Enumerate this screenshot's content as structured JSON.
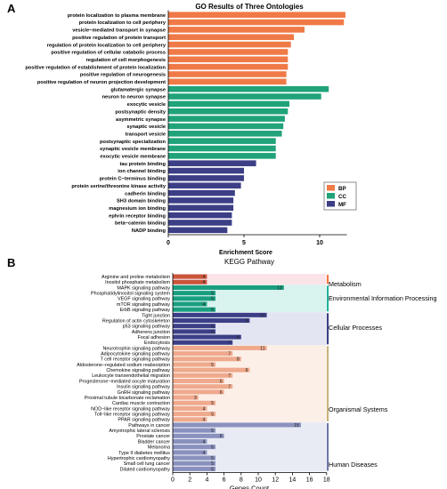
{
  "chart_data": [
    {
      "panel_label": "A",
      "type": "bar",
      "orientation": "horizontal",
      "title": "GO Results of Three Ontologies",
      "xlabel": "Enrichment Score",
      "xlim": [
        0,
        11.8
      ],
      "xticks": [
        0,
        5,
        10
      ],
      "legend": {
        "placement": "right",
        "entries": [
          {
            "name": "BP",
            "color": "#f07a47"
          },
          {
            "name": "CC",
            "color": "#20a37a"
          },
          {
            "name": "MF",
            "color": "#3c3f86"
          }
        ]
      },
      "series": [
        {
          "name": "BP",
          "color": "#f07a47",
          "categories": [
            "protein localization to plasma membrane",
            "protein localization to cell periphery",
            "vesicle−mediated transport in synapse",
            "positive regulation of protein transport",
            "regulation of protein localization to cell periphery",
            "positive regulation of cellular catabolic process",
            "regulation of cell morphogenesis",
            "positive regulation of establishment of protein localization",
            "positive regulation of neurogenesis",
            "positive regulation of neuron projection development"
          ],
          "values": [
            11.7,
            11.6,
            9.0,
            8.3,
            8.1,
            7.9,
            7.9,
            7.9,
            7.8,
            7.8
          ]
        },
        {
          "name": "CC",
          "color": "#20a37a",
          "categories": [
            "glutamatergic synapse",
            "neuron to neuron synapse",
            "exocytic vesicle",
            "postsynaptic density",
            "asymmetric synapse",
            "synaptic vesicle",
            "transport vesicle",
            "postsynaptic specialization",
            "synaptic vesicle membrane",
            "exocytic vesicle membrane"
          ],
          "values": [
            10.6,
            10.1,
            8.0,
            7.9,
            7.7,
            7.6,
            7.5,
            7.1,
            7.1,
            7.1
          ]
        },
        {
          "name": "MF",
          "color": "#3c3f86",
          "categories": [
            "tau protein binding",
            "ion channel binding",
            "protein C−terminus binding",
            "protein serine/threonine kinase activity",
            "cadherin binding",
            "SH3 domain binding",
            "magnesium ion binding",
            "ephrin receptor binding",
            "beta−catenin binding",
            "NADP binding"
          ],
          "values": [
            5.8,
            5.0,
            5.0,
            4.8,
            4.4,
            4.3,
            4.3,
            4.2,
            4.2,
            3.9
          ]
        }
      ]
    },
    {
      "panel_label": "B",
      "type": "bar",
      "orientation": "horizontal",
      "title": "KEGG Pathway",
      "xlabel": "Genes Count",
      "xlim": [
        0,
        18
      ],
      "xticks": [
        0,
        2,
        4,
        6,
        8,
        10,
        12,
        14,
        16,
        18
      ],
      "groups": [
        {
          "name": "Metabolism",
          "color": "#f07a47",
          "bar_color": "#c9553a",
          "bg": "#fbe4e8",
          "pathways": [
            {
              "label": "Arginine and proline metabolism",
              "value": 4
            },
            {
              "label": "Inositol phosphate metabolism",
              "value": 4
            }
          ]
        },
        {
          "name": "Environmental Information Processing",
          "color": "#22b39a",
          "bar_color": "#1a9e80",
          "bg": "#d9f3ef",
          "pathways": [
            {
              "label": "MAPK signaling pathway",
              "value": 13
            },
            {
              "label": "Phosphatidylinositol signaling system",
              "value": 5
            },
            {
              "label": "VEGF signaling pathway",
              "value": 5
            },
            {
              "label": "mTOR signaling pathway",
              "value": 4
            },
            {
              "label": "ErbB signaling pathway",
              "value": 5
            }
          ]
        },
        {
          "name": "Cellular Processes",
          "color": "#3c3f86",
          "bar_color": "#3c3f86",
          "bg": "#e3e5f3",
          "pathways": [
            {
              "label": "Tight junction",
              "value": 11
            },
            {
              "label": "Regulation of actin cytoskeleton",
              "value": 9
            },
            {
              "label": "p53 signaling pathway",
              "value": 5
            },
            {
              "label": "Adherens junction",
              "value": 5
            },
            {
              "label": "Focal adhesion",
              "value": 8
            },
            {
              "label": "Endocytosis",
              "value": 7
            }
          ]
        },
        {
          "name": "Organismal Systems",
          "color": "#c9b27a",
          "bar_color": "#efa98c",
          "bg": "#fcefe8",
          "pathways": [
            {
              "label": "Neurotrophin signaling pathway",
              "value": 11
            },
            {
              "label": "Adipocytokine signaling pathway",
              "value": 7
            },
            {
              "label": "T cell receptor signaling pathway",
              "value": 8
            },
            {
              "label": "Aldosterone−regulated sodium reabsorption",
              "value": 5
            },
            {
              "label": "Chemokine signaling pathway",
              "value": 9
            },
            {
              "label": "Leukocyte transendothelial migration",
              "value": 7
            },
            {
              "label": "Progesterone−mediated oocyte maturation",
              "value": 6
            },
            {
              "label": "Insulin signaling pathway",
              "value": 7
            },
            {
              "label": "GnRH signaling pathway",
              "value": 6
            },
            {
              "label": "Proximal tubule bicarbonate reclamation",
              "value": 3
            },
            {
              "label": "Cardiac muscle contraction",
              "value": 5
            },
            {
              "label": "NOD−like receptor signaling pathway",
              "value": 4
            },
            {
              "label": "Toll−like receptor signaling pathway",
              "value": 5
            },
            {
              "label": "PPAR signaling pathway",
              "value": 4
            }
          ]
        },
        {
          "name": "Human Diseases",
          "color": "#6f78a6",
          "bar_color": "#8a91bd",
          "bg": "#e9ebf4",
          "pathways": [
            {
              "label": "Pathways in cancer",
              "value": 15
            },
            {
              "label": "Amyotrophic lateral sclerosis",
              "value": 5
            },
            {
              "label": "Prostate cancer",
              "value": 6
            },
            {
              "label": "Bladder cancer",
              "value": 4
            },
            {
              "label": "Melanoma",
              "value": 5
            },
            {
              "label": "Type II diabetes mellitus",
              "value": 4
            },
            {
              "label": "Hypertrophic cardiomyopathy",
              "value": 5
            },
            {
              "label": "Small cell lung cancer",
              "value": 5
            },
            {
              "label": "Dilated cardiomyopathy",
              "value": 5
            }
          ]
        }
      ]
    }
  ]
}
